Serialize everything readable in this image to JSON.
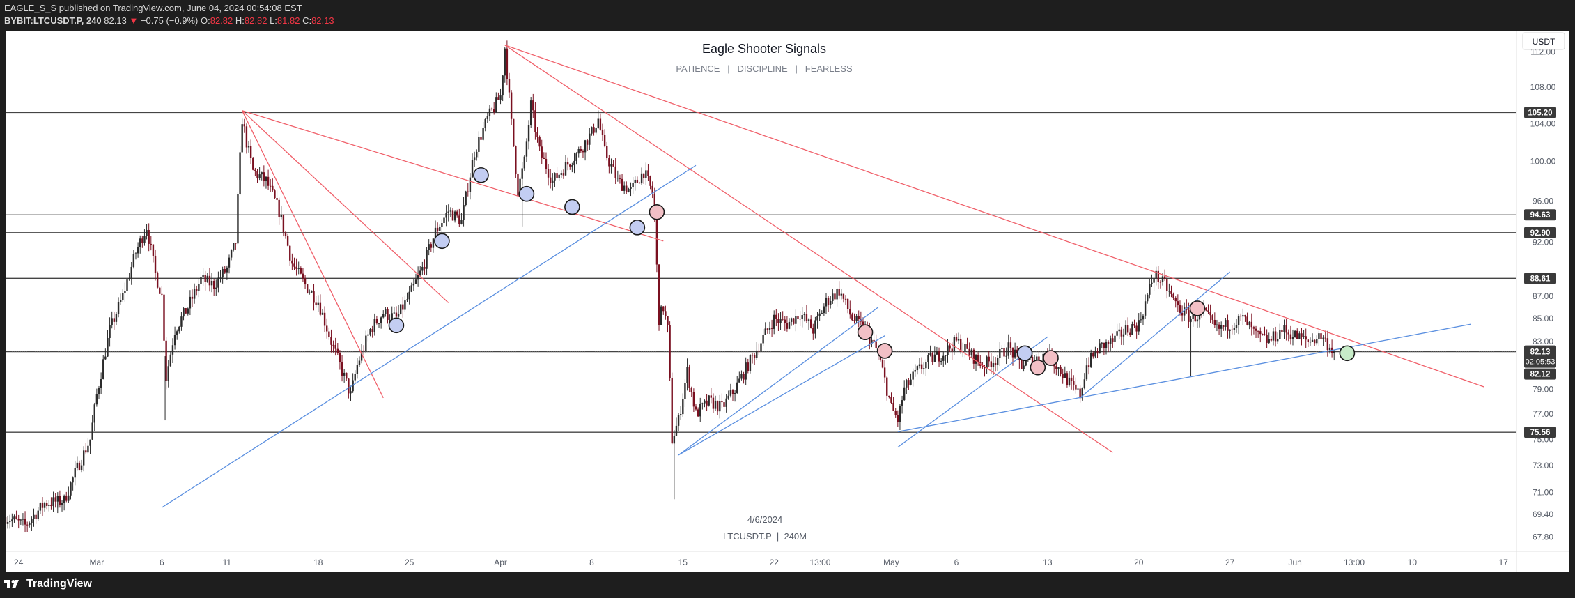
{
  "header": {
    "publisher_line": "EAGLE_S_S published on TradingView.com, June 04, 2024 00:54:08 EST",
    "symbol": "BYBIT:LTCUSDT.P, 240",
    "last": "82.13",
    "change": "−0.75 (−0.9%)",
    "o_label": "O:",
    "o_value": "82.82",
    "h_label": "H:",
    "h_value": "82.82",
    "l_label": "L:",
    "l_value": "81.82",
    "c_label": "C:",
    "c_value": "82.13"
  },
  "footer": {
    "brand": "TradingView"
  },
  "colors": {
    "red_line": "#f0606a",
    "blue_line": "#5a8fe0",
    "h_line": "#444444",
    "candle_up": "#2b2b2b",
    "candle_down": "#7a1020",
    "circle_blue": "#c3cdf2",
    "circle_red": "#f2c0c6",
    "circle_green": "#c7ecc8"
  },
  "chart_data": {
    "type": "candlestick",
    "title": "Eagle Shooter Signals",
    "subtitle": "PATIENCE   |   DISCIPLINE   |   FEARLESS",
    "watermark_date": "4/6/2024",
    "watermark_symbol": "LTCUSDT.P  |  240M",
    "currency_button": "USDT",
    "y_scale": "log",
    "y_range": [
      66.8,
      114.5
    ],
    "x_range": [
      "2024-02-23",
      "2024-06-18"
    ],
    "y_ticks": [
      112.0,
      108.0,
      104.0,
      100.0,
      96.0,
      92.0,
      87.0,
      85.0,
      83.0,
      79.0,
      77.0,
      75.0,
      73.0,
      71.0,
      69.4,
      67.8
    ],
    "y_tick_labels": [
      "112.00",
      "108.00",
      "104.00",
      "100.00",
      "96.00",
      "92.00",
      "87.00",
      "85.00",
      "83.00",
      "79.00",
      "77.00",
      "75.00",
      "73.00",
      "71.00",
      "69.40",
      "67.80"
    ],
    "x_tick_labels": [
      {
        "date": "2024-02-24",
        "label": "24"
      },
      {
        "date": "2024-03-01",
        "label": "Mar"
      },
      {
        "date": "2024-03-06",
        "label": "6"
      },
      {
        "date": "2024-03-11",
        "label": "11"
      },
      {
        "date": "2024-03-18",
        "label": "18"
      },
      {
        "date": "2024-03-25",
        "label": "25"
      },
      {
        "date": "2024-04-01",
        "label": "Apr"
      },
      {
        "date": "2024-04-08",
        "label": "8"
      },
      {
        "date": "2024-04-15",
        "label": "15"
      },
      {
        "date": "2024-04-22",
        "label": "22"
      },
      {
        "date": "2024-04-25T13:00",
        "label": "13:00"
      },
      {
        "date": "2024-05-01",
        "label": "May"
      },
      {
        "date": "2024-05-06",
        "label": "6"
      },
      {
        "date": "2024-05-13",
        "label": "13"
      },
      {
        "date": "2024-05-20",
        "label": "20"
      },
      {
        "date": "2024-05-27",
        "label": "27"
      },
      {
        "date": "2024-06-01",
        "label": "Jun"
      },
      {
        "date": "2024-06-05T13:00",
        "label": "13:00"
      },
      {
        "date": "2024-06-10",
        "label": "10"
      },
      {
        "date": "2024-06-17",
        "label": "17"
      }
    ],
    "horizontal_levels": [
      {
        "price": 105.2,
        "label": "105.20"
      },
      {
        "price": 94.63,
        "label": "94.63"
      },
      {
        "price": 92.9,
        "label": "92.90"
      },
      {
        "price": 88.61,
        "label": "88.61"
      },
      {
        "price": 82.13,
        "label": "82.13"
      },
      {
        "price": 75.56,
        "label": "75.56"
      }
    ],
    "current_price": {
      "price": 82.13,
      "label": "82.13",
      "countdown": "02:05:53",
      "low_label": "82.12",
      "low_price": 82.12
    },
    "price_path": [
      [
        "2024-02-23T00:00",
        69.2
      ],
      [
        "2024-02-24T12:00",
        68.6
      ],
      [
        "2024-02-26T00:00",
        70.2
      ],
      [
        "2024-02-27T12:00",
        70.4
      ],
      [
        "2024-02-28T12:00",
        72.8
      ],
      [
        "2024-02-29T12:00",
        75.0
      ],
      [
        "2024-03-01T00:00",
        78.5
      ],
      [
        "2024-03-02T00:00",
        84.0
      ],
      [
        "2024-03-03T00:00",
        87.0
      ],
      [
        "2024-03-04T00:00",
        91.0
      ],
      [
        "2024-03-04T20:00",
        93.5
      ],
      [
        "2024-03-05T12:00",
        89.0
      ],
      [
        "2024-03-06T00:00",
        87.0
      ],
      [
        "2024-03-06T08:00",
        80.0
      ],
      [
        "2024-03-07T00:00",
        84.0
      ],
      [
        "2024-03-08T00:00",
        86.0
      ],
      [
        "2024-03-09T00:00",
        88.5
      ],
      [
        "2024-03-10T00:00",
        88.0
      ],
      [
        "2024-03-11T00:00",
        89.5
      ],
      [
        "2024-03-11T16:00",
        92.0
      ],
      [
        "2024-03-12T04:00",
        104.5
      ],
      [
        "2024-03-12T12:00",
        102.0
      ],
      [
        "2024-03-13T00:00",
        99.0
      ],
      [
        "2024-03-14T00:00",
        98.0
      ],
      [
        "2024-03-15T00:00",
        95.0
      ],
      [
        "2024-03-16T00:00",
        90.0
      ],
      [
        "2024-03-17T00:00",
        88.0
      ],
      [
        "2024-03-18T00:00",
        86.5
      ],
      [
        "2024-03-19T00:00",
        83.0
      ],
      [
        "2024-03-20T00:00",
        80.0
      ],
      [
        "2024-03-20T12:00",
        78.5
      ],
      [
        "2024-03-21T00:00",
        81.0
      ],
      [
        "2024-03-22T00:00",
        84.0
      ],
      [
        "2024-03-23T00:00",
        85.5
      ],
      [
        "2024-03-24T00:00",
        85.0
      ],
      [
        "2024-03-25T00:00",
        87.0
      ],
      [
        "2024-03-26T00:00",
        89.5
      ],
      [
        "2024-03-27T00:00",
        93.0
      ],
      [
        "2024-03-28T00:00",
        95.0
      ],
      [
        "2024-03-29T00:00",
        94.0
      ],
      [
        "2024-03-30T00:00",
        101.0
      ],
      [
        "2024-03-31T00:00",
        104.5
      ],
      [
        "2024-04-01T00:00",
        107.0
      ],
      [
        "2024-04-01T08:00",
        112.5
      ],
      [
        "2024-04-01T20:00",
        104.0
      ],
      [
        "2024-04-02T08:00",
        97.0
      ],
      [
        "2024-04-02T20:00",
        100.0
      ],
      [
        "2024-04-03T08:00",
        106.0
      ],
      [
        "2024-04-04T00:00",
        101.0
      ],
      [
        "2024-04-05T00:00",
        98.0
      ],
      [
        "2024-04-06T00:00",
        99.5
      ],
      [
        "2024-04-07T00:00",
        101.0
      ],
      [
        "2024-04-08T00:00",
        103.0
      ],
      [
        "2024-04-08T12:00",
        104.5
      ],
      [
        "2024-04-09T00:00",
        101.0
      ],
      [
        "2024-04-10T00:00",
        98.0
      ],
      [
        "2024-04-11T00:00",
        97.0
      ],
      [
        "2024-04-12T00:00",
        99.0
      ],
      [
        "2024-04-12T18:00",
        96.5
      ],
      [
        "2024-04-13T04:00",
        85.0
      ],
      [
        "2024-04-13T12:00",
        86.0
      ],
      [
        "2024-04-13T20:00",
        84.0
      ],
      [
        "2024-04-14T04:00",
        75.0
      ],
      [
        "2024-04-14T16:00",
        76.5
      ],
      [
        "2024-04-15T08:00",
        80.5
      ],
      [
        "2024-04-16T00:00",
        77.0
      ],
      [
        "2024-04-17T00:00",
        78.0
      ],
      [
        "2024-04-18T00:00",
        77.5
      ],
      [
        "2024-04-19T00:00",
        79.0
      ],
      [
        "2024-04-20T00:00",
        81.0
      ],
      [
        "2024-04-21T00:00",
        83.0
      ],
      [
        "2024-04-22T00:00",
        85.0
      ],
      [
        "2024-04-23T00:00",
        84.5
      ],
      [
        "2024-04-24T00:00",
        85.5
      ],
      [
        "2024-04-25T00:00",
        84.0
      ],
      [
        "2024-04-26T00:00",
        86.5
      ],
      [
        "2024-04-27T00:00",
        87.5
      ],
      [
        "2024-04-28T00:00",
        85.0
      ],
      [
        "2024-04-29T00:00",
        84.0
      ],
      [
        "2024-04-30T00:00",
        82.0
      ],
      [
        "2024-05-01T00:00",
        77.5
      ],
      [
        "2024-05-01T12:00",
        76.5
      ],
      [
        "2024-05-02T00:00",
        79.0
      ],
      [
        "2024-05-03T00:00",
        80.5
      ],
      [
        "2024-05-04T00:00",
        81.5
      ],
      [
        "2024-05-05T00:00",
        82.0
      ],
      [
        "2024-05-06T00:00",
        83.0
      ],
      [
        "2024-05-07T00:00",
        82.0
      ],
      [
        "2024-05-08T00:00",
        81.0
      ],
      [
        "2024-05-09T00:00",
        81.5
      ],
      [
        "2024-05-10T00:00",
        82.5
      ],
      [
        "2024-05-11T00:00",
        81.0
      ],
      [
        "2024-05-12T00:00",
        81.5
      ],
      [
        "2024-05-13T00:00",
        82.0
      ],
      [
        "2024-05-14T00:00",
        80.5
      ],
      [
        "2024-05-15T00:00",
        79.0
      ],
      [
        "2024-05-15T12:00",
        78.5
      ],
      [
        "2024-05-16T00:00",
        81.0
      ],
      [
        "2024-05-17T00:00",
        82.5
      ],
      [
        "2024-05-18T00:00",
        83.0
      ],
      [
        "2024-05-19T00:00",
        84.0
      ],
      [
        "2024-05-20T00:00",
        84.5
      ],
      [
        "2024-05-20T16:00",
        87.0
      ],
      [
        "2024-05-21T04:00",
        89.0
      ],
      [
        "2024-05-22T00:00",
        88.0
      ],
      [
        "2024-05-23T00:00",
        86.0
      ],
      [
        "2024-05-24T00:00",
        85.0
      ],
      [
        "2024-05-25T00:00",
        85.5
      ],
      [
        "2024-05-26T00:00",
        84.0
      ],
      [
        "2024-05-27T00:00",
        84.5
      ],
      [
        "2024-05-28T00:00",
        85.0
      ],
      [
        "2024-05-29T00:00",
        83.5
      ],
      [
        "2024-05-30T00:00",
        83.0
      ],
      [
        "2024-05-31T00:00",
        84.0
      ],
      [
        "2024-06-01T00:00",
        83.5
      ],
      [
        "2024-06-02T00:00",
        83.0
      ],
      [
        "2024-06-03T00:00",
        83.5
      ],
      [
        "2024-06-04T00:00",
        82.13
      ]
    ],
    "wick_spikes": [
      [
        "2024-03-06T06:00",
        76.5
      ],
      [
        "2024-02-27T00:00",
        69.5
      ],
      [
        "2024-04-14T08:00",
        70.5
      ],
      [
        "2024-05-24T00:00",
        80.0
      ],
      [
        "2024-04-02T16:00",
        93.5
      ]
    ],
    "trendlines": [
      {
        "color": "red",
        "points": [
          [
            "2024-03-12T04:00",
            105.4
          ],
          [
            "2024-03-23T00:00",
            78.3
          ]
        ]
      },
      {
        "color": "red",
        "points": [
          [
            "2024-03-12T04:00",
            105.4
          ],
          [
            "2024-03-28T00:00",
            86.4
          ]
        ]
      },
      {
        "color": "red",
        "points": [
          [
            "2024-03-12T04:00",
            105.4
          ],
          [
            "2024-04-13T12:00",
            92.1
          ]
        ]
      },
      {
        "color": "red",
        "points": [
          [
            "2024-04-01T08:00",
            112.8
          ],
          [
            "2024-05-18T00:00",
            74.0
          ]
        ]
      },
      {
        "color": "red",
        "points": [
          [
            "2024-04-01T08:00",
            112.8
          ],
          [
            "2024-06-15T12:00",
            79.2
          ]
        ]
      },
      {
        "color": "blue",
        "points": [
          [
            "2024-03-06T00:00",
            69.9
          ],
          [
            "2024-04-16T00:00",
            99.6
          ]
        ]
      },
      {
        "color": "blue",
        "points": [
          [
            "2024-04-14T16:00",
            73.8
          ],
          [
            "2024-04-30T00:00",
            86.0
          ]
        ]
      },
      {
        "color": "blue",
        "points": [
          [
            "2024-04-14T16:00",
            73.8
          ],
          [
            "2024-04-30T12:00",
            83.5
          ]
        ]
      },
      {
        "color": "blue",
        "points": [
          [
            "2024-05-01T12:00",
            74.4
          ],
          [
            "2024-05-13T00:00",
            83.4
          ]
        ]
      },
      {
        "color": "blue",
        "points": [
          [
            "2024-05-15T12:00",
            78.3
          ],
          [
            "2024-05-27T00:00",
            89.2
          ]
        ]
      },
      {
        "color": "blue",
        "points": [
          [
            "2024-05-01T12:00",
            75.6
          ],
          [
            "2024-06-14T12:00",
            84.5
          ]
        ]
      }
    ],
    "signals": [
      {
        "date": "2024-03-24T00:00",
        "price": 84.4,
        "type": "blue"
      },
      {
        "date": "2024-03-27T12:00",
        "price": 92.1,
        "type": "blue"
      },
      {
        "date": "2024-03-30T12:00",
        "price": 98.6,
        "type": "blue"
      },
      {
        "date": "2024-04-03T00:00",
        "price": 96.7,
        "type": "blue"
      },
      {
        "date": "2024-04-06T12:00",
        "price": 95.4,
        "type": "blue"
      },
      {
        "date": "2024-04-11T12:00",
        "price": 93.4,
        "type": "blue"
      },
      {
        "date": "2024-04-13T00:00",
        "price": 94.9,
        "type": "red"
      },
      {
        "date": "2024-04-29T00:00",
        "price": 83.8,
        "type": "red"
      },
      {
        "date": "2024-04-30T12:00",
        "price": 82.2,
        "type": "red"
      },
      {
        "date": "2024-05-11T06:00",
        "price": 82.0,
        "type": "blue"
      },
      {
        "date": "2024-05-12T06:00",
        "price": 80.8,
        "type": "red"
      },
      {
        "date": "2024-05-13T06:00",
        "price": 81.6,
        "type": "red"
      },
      {
        "date": "2024-05-24T12:00",
        "price": 85.9,
        "type": "red"
      },
      {
        "date": "2024-06-05T00:00",
        "price": 82.0,
        "type": "green"
      }
    ]
  }
}
